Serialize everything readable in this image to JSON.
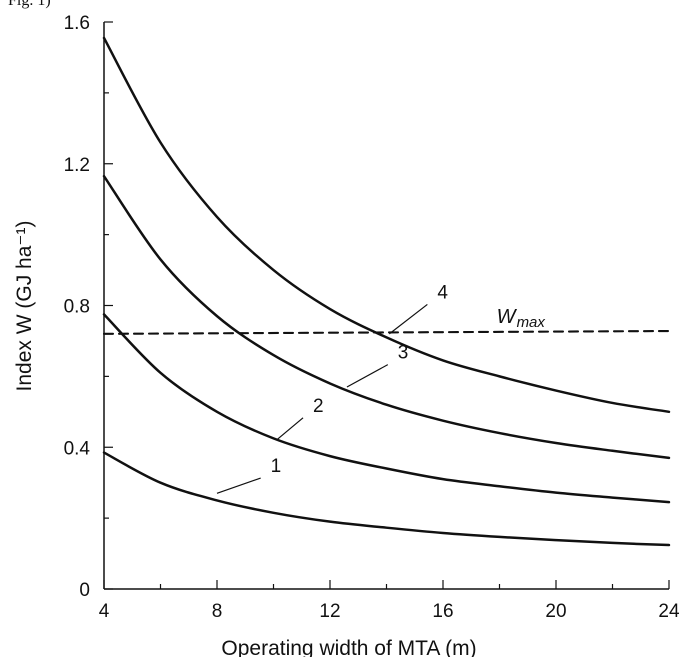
{
  "top_fragment": "Fig. 1)",
  "chart_data": {
    "type": "line",
    "title": "",
    "xlabel": "Operating width of MTA (m)",
    "ylabel": "Index W (GJ ha⁻¹)",
    "xlim": [
      4,
      24
    ],
    "ylim": [
      0,
      1.6
    ],
    "x_ticks": [
      4,
      8,
      12,
      16,
      20,
      24
    ],
    "x_tick_labels": [
      "4",
      "8",
      "12",
      "16",
      "20",
      "24"
    ],
    "y_ticks": [
      0,
      0.4,
      0.8,
      1.2,
      1.6
    ],
    "y_tick_labels": [
      "0",
      "0.4",
      "0.8",
      "1.2",
      "1.6"
    ],
    "grid": false,
    "series": [
      {
        "name": "1",
        "style": "solid",
        "x": [
          4,
          6,
          8,
          10,
          12,
          14,
          16,
          18,
          20,
          22,
          24
        ],
        "y": [
          0.385,
          0.3,
          0.25,
          0.215,
          0.19,
          0.173,
          0.158,
          0.147,
          0.138,
          0.13,
          0.124
        ]
      },
      {
        "name": "2",
        "style": "solid",
        "x": [
          4,
          6,
          8,
          10,
          12,
          14,
          16,
          18,
          20,
          22,
          24
        ],
        "y": [
          0.775,
          0.61,
          0.5,
          0.425,
          0.375,
          0.34,
          0.31,
          0.29,
          0.272,
          0.258,
          0.245
        ]
      },
      {
        "name": "3",
        "style": "solid",
        "x": [
          4,
          6,
          8,
          10,
          12,
          14,
          16,
          18,
          20,
          22,
          24
        ],
        "y": [
          1.165,
          0.93,
          0.77,
          0.66,
          0.58,
          0.52,
          0.475,
          0.44,
          0.412,
          0.39,
          0.37
        ]
      },
      {
        "name": "4",
        "style": "solid",
        "x": [
          4,
          6,
          8,
          10,
          12,
          14,
          16,
          18,
          20,
          22,
          24
        ],
        "y": [
          1.555,
          1.26,
          1.05,
          0.9,
          0.79,
          0.71,
          0.645,
          0.6,
          0.56,
          0.525,
          0.5
        ]
      },
      {
        "name": "Wmax",
        "style": "dashed",
        "x": [
          4,
          24
        ],
        "y": [
          0.72,
          0.728
        ]
      }
    ],
    "annotations": [
      {
        "text": "1",
        "x": 9.9,
        "y": 0.33,
        "series": "1",
        "leader_from": [
          8.0,
          0.27
        ]
      },
      {
        "text": "2",
        "x": 11.4,
        "y": 0.5,
        "series": "2",
        "leader_from": [
          10.1,
          0.42
        ]
      },
      {
        "text": "3",
        "x": 14.4,
        "y": 0.65,
        "series": "3",
        "leader_from": [
          12.6,
          0.57
        ]
      },
      {
        "text": "4",
        "x": 15.8,
        "y": 0.82,
        "series": "4",
        "leader_from": [
          14.1,
          0.72
        ]
      },
      {
        "text": "W",
        "subscript": "max",
        "x": 17.9,
        "y": 0.75,
        "series": "Wmax"
      }
    ]
  }
}
